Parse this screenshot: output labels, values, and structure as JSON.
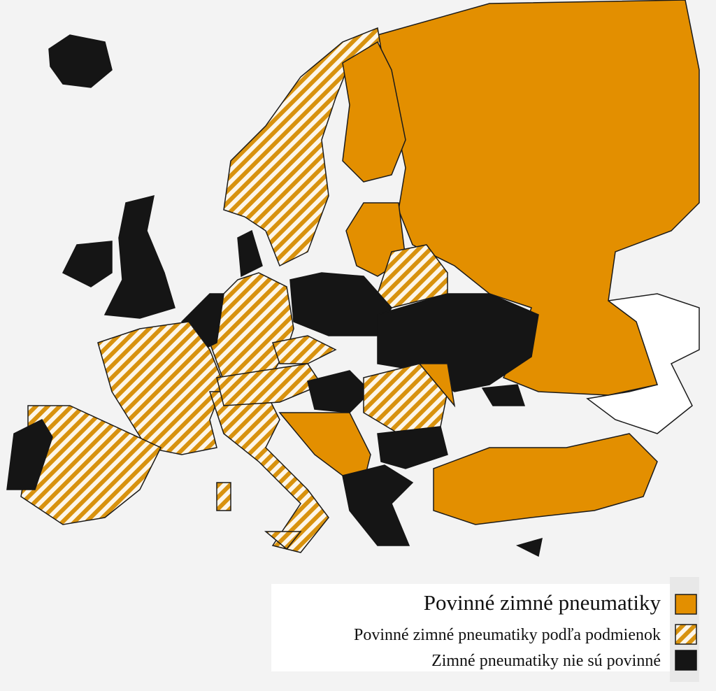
{
  "legend": {
    "items": [
      {
        "label": "Povinné zimné pneumatiky"
      },
      {
        "label": "Povinné zimné pneumatiky podľa podmienok"
      },
      {
        "label": "Zimné pneumatiky nie sú povinné"
      }
    ]
  }
}
